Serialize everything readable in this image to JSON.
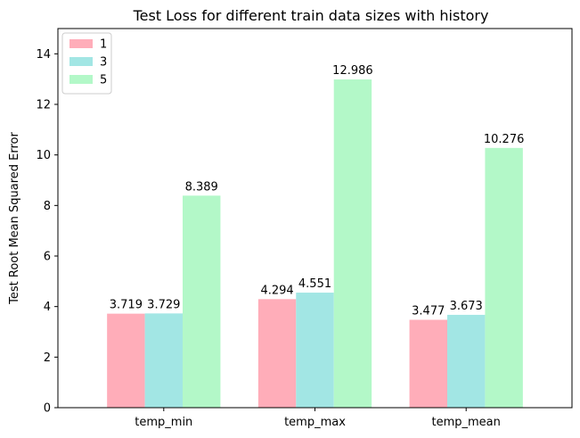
{
  "chart_data": {
    "type": "bar",
    "title": "Test Loss for different train data sizes with history",
    "xlabel": "",
    "ylabel": "Test Root Mean Squared Error",
    "categories": [
      "temp_min",
      "temp_max",
      "temp_mean"
    ],
    "series": [
      {
        "name": "1",
        "color": "#ffadb9",
        "values": [
          3.719,
          4.294,
          3.477
        ],
        "labels": [
          "3.719",
          "4.294",
          "3.477"
        ]
      },
      {
        "name": "3",
        "color": "#a2e6e4",
        "values": [
          3.729,
          4.551,
          3.673
        ],
        "labels": [
          "3.729",
          "4.551",
          "3.673"
        ]
      },
      {
        "name": "5",
        "color": "#b3f8c8",
        "values": [
          8.389,
          12.986,
          10.276
        ],
        "labels": [
          "8.389",
          "12.986",
          "10.276"
        ]
      }
    ],
    "ylim": [
      0,
      15
    ],
    "yticks": [
      0,
      2,
      4,
      6,
      8,
      10,
      12,
      14
    ],
    "ytick_labels": [
      "0",
      "2",
      "4",
      "6",
      "8",
      "10",
      "12",
      "14"
    ],
    "grid": false,
    "legend_position": "top-left"
  }
}
